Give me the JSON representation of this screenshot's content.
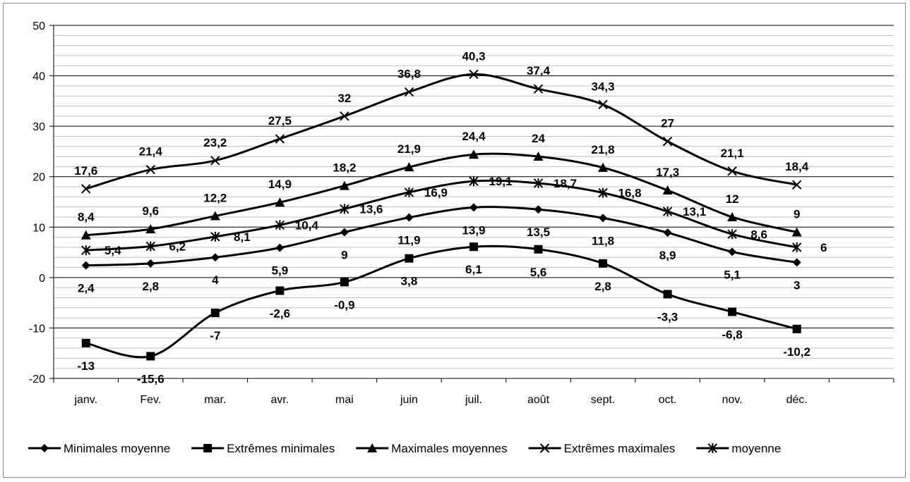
{
  "chart_data": {
    "type": "line",
    "title": "",
    "xlabel": "",
    "ylabel": "",
    "categories": [
      "janv.",
      "Fev.",
      "mar.",
      "avr.",
      "mai",
      "juin",
      "juil.",
      "août",
      "sept.",
      "oct.",
      "nov.",
      "déc."
    ],
    "ylim": [
      -20,
      50
    ],
    "yticks": [
      -20,
      -10,
      0,
      10,
      20,
      30,
      40,
      50
    ],
    "grid": "horizontal",
    "legend_position": "bottom",
    "series": [
      {
        "name": "Minimales moyenne",
        "marker": "diamond",
        "values": [
          2.4,
          2.8,
          4,
          5.9,
          9,
          11.9,
          13.9,
          13.5,
          11.8,
          8.9,
          5.1,
          3
        ],
        "labels": [
          "2,4",
          "2,8",
          "4",
          "5,9",
          "9",
          "11,9",
          "13,9",
          "13,5",
          "11,8",
          "8,9",
          "5,1",
          "3"
        ]
      },
      {
        "name": "Extrêmes minimales",
        "marker": "square",
        "values": [
          -13,
          -15.6,
          -7,
          -2.6,
          -0.9,
          3.8,
          6.1,
          5.6,
          2.8,
          -3.3,
          -6.8,
          -10.2
        ],
        "labels": [
          "-13",
          "-15,6",
          "-7",
          "-2,6",
          "-0,9",
          "3,8",
          "6,1",
          "5,6",
          "2,8",
          "-3,3",
          "-6,8",
          "-10,2"
        ]
      },
      {
        "name": "Maximales moyennes",
        "marker": "triangle",
        "values": [
          8.4,
          9.6,
          12.2,
          14.9,
          18.2,
          21.9,
          24.4,
          24,
          21.8,
          17.3,
          12,
          9
        ],
        "labels": [
          "8,4",
          "9,6",
          "12,2",
          "14,9",
          "18,2",
          "21,9",
          "24,4",
          "24",
          "21,8",
          "17,3",
          "12",
          "9"
        ]
      },
      {
        "name": "Extrêmes maximales",
        "marker": "x",
        "values": [
          17.6,
          21.4,
          23.2,
          27.5,
          32,
          36.8,
          40.3,
          37.4,
          34.3,
          27,
          21.1,
          18.4
        ],
        "labels": [
          "17,6",
          "21,4",
          "23,2",
          "27,5",
          "32",
          "36,8",
          "40,3",
          "37,4",
          "34,3",
          "27",
          "21,1",
          "18,4"
        ]
      },
      {
        "name": "moyenne",
        "marker": "star",
        "values": [
          5.4,
          6.2,
          8.1,
          10.4,
          13.6,
          16.9,
          19.1,
          18.7,
          16.8,
          13.1,
          8.6,
          6
        ],
        "labels": [
          "5,4",
          "6,2",
          "8,1",
          "10,4",
          "13,6",
          "16,9",
          "19,1",
          "18,7",
          "16,8",
          "13,1",
          "8,6",
          "6"
        ]
      }
    ],
    "line_color": "#000000",
    "grid_color": "#000000",
    "minor_grid_color": "#bfbfbf"
  }
}
